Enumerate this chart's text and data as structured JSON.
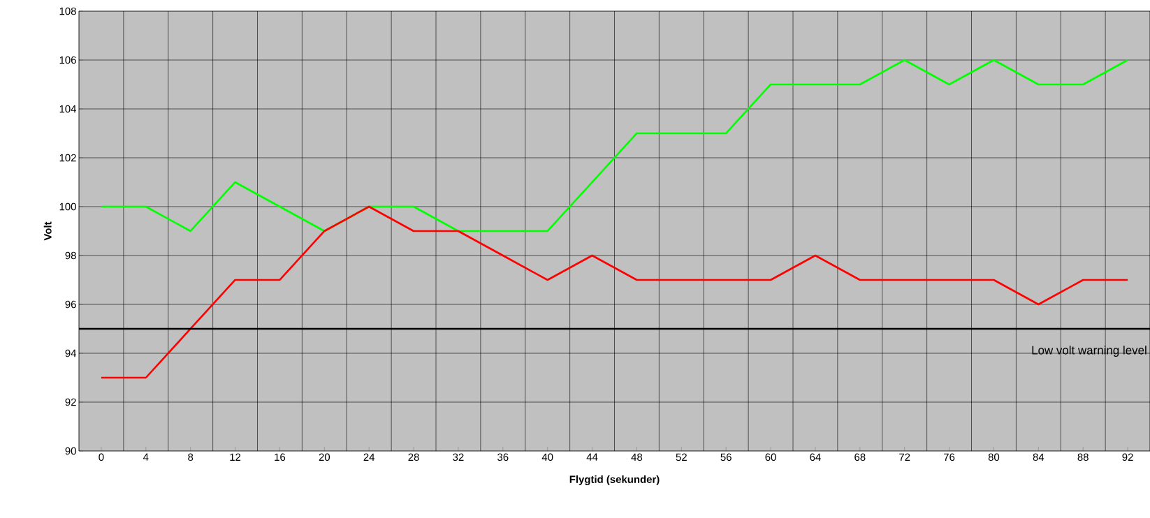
{
  "chart_data": {
    "type": "line",
    "xlabel": "Flygtid (sekunder)",
    "ylabel": "Volt",
    "categories": [
      "0",
      "4",
      "8",
      "12",
      "16",
      "20",
      "24",
      "28",
      "32",
      "36",
      "40",
      "44",
      "48",
      "52",
      "56",
      "60",
      "64",
      "68",
      "72",
      "76",
      "80",
      "84",
      "88",
      "92"
    ],
    "series": [
      {
        "color": "#00ff00",
        "values": [
          100,
          100,
          99,
          101,
          100,
          99,
          100,
          100,
          99,
          99,
          99,
          101,
          103,
          103,
          103,
          105,
          105,
          105,
          106,
          105,
          106,
          105,
          105,
          106
        ]
      },
      {
        "color": "#ff0000",
        "values": [
          93,
          93,
          95,
          97,
          97,
          99,
          100,
          99,
          99,
          98,
          97,
          98,
          97,
          97,
          97,
          97,
          98,
          97,
          97,
          97,
          97,
          96,
          97,
          97
        ]
      }
    ],
    "ylim": [
      90,
      108
    ],
    "yticks": [
      90,
      92,
      94,
      96,
      98,
      100,
      102,
      104,
      106,
      108
    ],
    "grid": true,
    "ref_lines": [
      {
        "axis": "y",
        "value": 95,
        "label": "Low volt warning level",
        "color": "#000000"
      }
    ]
  }
}
